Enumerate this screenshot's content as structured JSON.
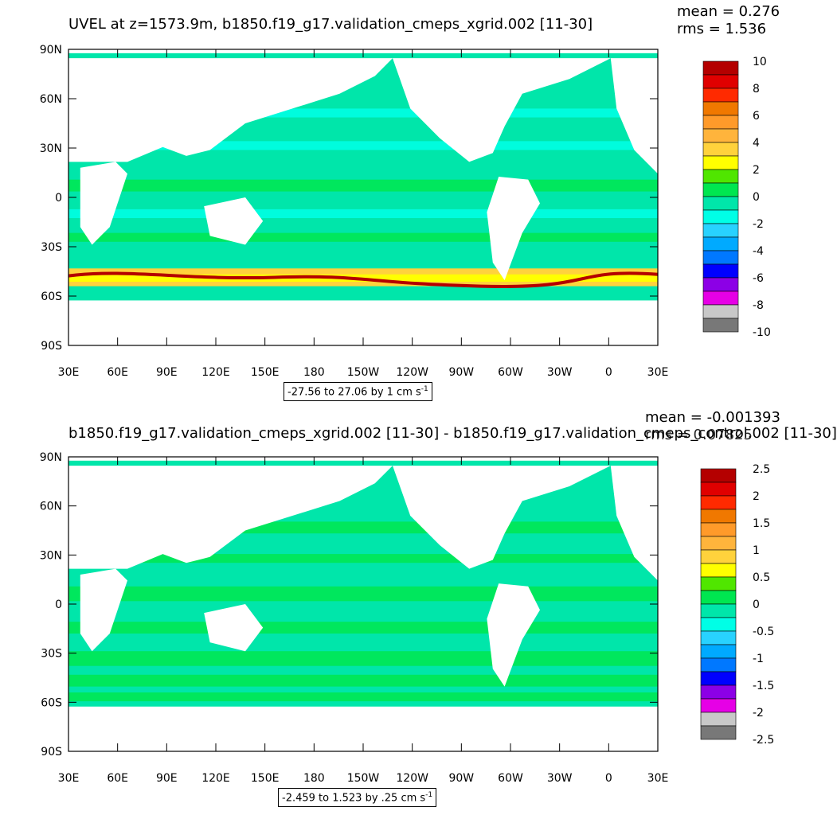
{
  "panels": [
    {
      "title": "UVEL at z=1573.9m, b1850.f19_g17.validation_cmeps_xgrid.002 [11-30]",
      "mean": "mean = 0.276",
      "rms": "rms = 1.536",
      "range_text": "-27.56 to 27.06 by 1 cm s",
      "range_sup": "-1",
      "colorbar_labels": [
        "10",
        "8",
        "6",
        "4",
        "2",
        "0",
        "-2",
        "-4",
        "-6",
        "-8",
        "-10"
      ],
      "colors": [
        "#b40000",
        "#e00000",
        "#ff2a00",
        "#f07800",
        "#ff9a2a",
        "#ffb43c",
        "#ffd23c",
        "#ffff00",
        "#50e600",
        "#00e650",
        "#00e6aa",
        "#00ffe6",
        "#28d2ff",
        "#00aaff",
        "#0078ff",
        "#0000ff",
        "#8c00e6",
        "#e600e6",
        "#c8c8c8",
        "#787878"
      ]
    },
    {
      "title": "b1850.f19_g17.validation_cmeps_xgrid.002 [11-30] - b1850.f19_g17.validation_cmeps_control.002 [11-30]",
      "mean": "mean = -0.001393",
      "rms": "rms = 0.07825",
      "range_text": "-2.459 to 1.523 by .25 cm s",
      "range_sup": "-1",
      "colorbar_labels": [
        "2.5",
        "2",
        "1.5",
        "1",
        "0.5",
        "0",
        "-0.5",
        "-1",
        "-1.5",
        "-2",
        "-2.5"
      ],
      "colors": [
        "#b40000",
        "#e00000",
        "#ff2a00",
        "#f07800",
        "#ff9a2a",
        "#ffb43c",
        "#ffd23c",
        "#ffff00",
        "#50e600",
        "#00e650",
        "#00e6aa",
        "#00ffe6",
        "#28d2ff",
        "#00aaff",
        "#0078ff",
        "#0000ff",
        "#8c00e6",
        "#e600e6",
        "#c8c8c8",
        "#787878"
      ]
    }
  ],
  "axes": {
    "y_labels": [
      "90N",
      "60N",
      "30N",
      "0",
      "30S",
      "60S",
      "90S"
    ],
    "x_labels": [
      "30E",
      "60E",
      "90E",
      "120E",
      "150E",
      "180",
      "150W",
      "120W",
      "90W",
      "60W",
      "30W",
      "0",
      "30E"
    ]
  },
  "colors": {
    "ocean_main": "#00e6aa",
    "ocean_band": "#00e650",
    "ocean_light": "#00ffe6",
    "acc_yellow": "#ffff00",
    "acc_orange": "#ffd23c",
    "acc_red": "#b40000",
    "land": "#ffffff"
  }
}
